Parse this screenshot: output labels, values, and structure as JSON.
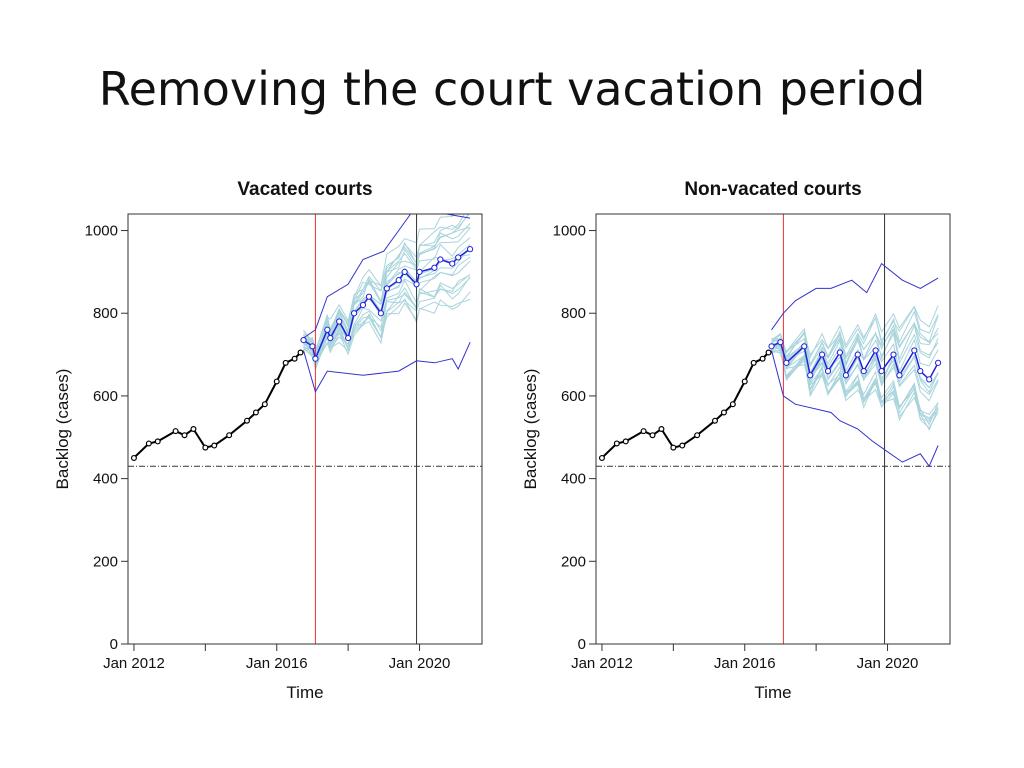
{
  "slide": {
    "title": "Removing the court vacation period"
  },
  "colors": {
    "observed": "#000000",
    "mean_forecast": "#2222dd",
    "bounds": "#3333cc",
    "simulations": "#a9d4dc",
    "intervention_line": "#ee3333",
    "reference_line": "#333333"
  },
  "chart_data": [
    {
      "type": "line",
      "title": "Vacated courts",
      "xlabel": "Time",
      "ylabel": "Backlog (cases)",
      "x_ticks": [
        "Jan 2012",
        "Jan 2016",
        "Jan 2020"
      ],
      "y_ticks": [
        0,
        200,
        400,
        600,
        800,
        1000
      ],
      "ylim": [
        0,
        1040
      ],
      "xlim": [
        "2011-11",
        "2021-10"
      ],
      "grid": false,
      "hline": 430,
      "vlines": [
        {
          "x": "2017-02",
          "color": "red"
        },
        {
          "x": "2019-12",
          "color": "black"
        }
      ],
      "observed": {
        "x": [
          "2012-01",
          "2012-06",
          "2012-09",
          "2013-03",
          "2013-06",
          "2013-09",
          "2014-01",
          "2014-04",
          "2014-09",
          "2015-03",
          "2015-06",
          "2015-09",
          "2016-01",
          "2016-04",
          "2016-07",
          "2016-09"
        ],
        "y": [
          450,
          485,
          490,
          515,
          505,
          520,
          475,
          480,
          505,
          540,
          560,
          580,
          635,
          680,
          690,
          705
        ]
      },
      "mean_forecast": {
        "x": [
          "2016-10",
          "2017-01",
          "2017-02",
          "2017-06",
          "2017-07",
          "2017-10",
          "2018-01",
          "2018-03",
          "2018-06",
          "2018-08",
          "2018-12",
          "2019-02",
          "2019-06",
          "2019-08",
          "2019-12",
          "2020-01",
          "2020-06",
          "2020-08",
          "2020-12",
          "2021-02",
          "2021-06"
        ],
        "y": [
          735,
          720,
          690,
          760,
          740,
          780,
          740,
          800,
          820,
          840,
          800,
          860,
          880,
          900,
          870,
          900,
          910,
          930,
          920,
          935,
          955
        ]
      },
      "upper_bound": {
        "x": [
          "2016-10",
          "2017-02",
          "2017-06",
          "2018-01",
          "2018-06",
          "2019-01",
          "2019-06",
          "2019-10",
          "2020-06",
          "2020-10",
          "2021-06"
        ],
        "y": [
          740,
          760,
          840,
          870,
          930,
          950,
          1000,
          1040,
          1040,
          1040,
          1030
        ]
      },
      "lower_bound": {
        "x": [
          "2016-10",
          "2017-02",
          "2017-06",
          "2018-06",
          "2019-06",
          "2019-12",
          "2020-06",
          "2020-12",
          "2021-02",
          "2021-06"
        ],
        "y": [
          710,
          610,
          660,
          650,
          660,
          685,
          680,
          690,
          665,
          730
        ]
      }
    },
    {
      "type": "line",
      "title": "Non-vacated courts",
      "xlabel": "Time",
      "ylabel": "Backlog (cases)",
      "x_ticks": [
        "Jan 2012",
        "Jan 2016",
        "Jan 2020"
      ],
      "y_ticks": [
        0,
        200,
        400,
        600,
        800,
        1000
      ],
      "ylim": [
        0,
        1040
      ],
      "xlim": [
        "2011-11",
        "2021-10"
      ],
      "grid": false,
      "hline": 430,
      "vlines": [
        {
          "x": "2017-02",
          "color": "red"
        },
        {
          "x": "2019-12",
          "color": "black"
        }
      ],
      "observed": {
        "x": [
          "2012-01",
          "2012-06",
          "2012-09",
          "2013-03",
          "2013-06",
          "2013-09",
          "2014-01",
          "2014-04",
          "2014-09",
          "2015-03",
          "2015-06",
          "2015-09",
          "2016-01",
          "2016-04",
          "2016-07",
          "2016-09"
        ],
        "y": [
          450,
          485,
          490,
          515,
          505,
          520,
          475,
          480,
          505,
          540,
          560,
          580,
          635,
          680,
          690,
          705
        ]
      },
      "mean_forecast": {
        "x": [
          "2016-10",
          "2017-01",
          "2017-03",
          "2017-09",
          "2017-11",
          "2018-03",
          "2018-05",
          "2018-09",
          "2018-11",
          "2019-03",
          "2019-05",
          "2019-09",
          "2019-11",
          "2020-03",
          "2020-05",
          "2020-10",
          "2020-12",
          "2021-03",
          "2021-06"
        ],
        "y": [
          720,
          730,
          680,
          720,
          650,
          700,
          660,
          705,
          650,
          700,
          660,
          710,
          660,
          700,
          650,
          710,
          660,
          640,
          680
        ]
      },
      "upper_bound": {
        "x": [
          "2016-10",
          "2017-02",
          "2017-06",
          "2018-01",
          "2018-06",
          "2019-01",
          "2019-06",
          "2019-11",
          "2020-06",
          "2020-12",
          "2021-06"
        ],
        "y": [
          760,
          800,
          830,
          860,
          860,
          880,
          850,
          920,
          880,
          860,
          885
        ]
      },
      "lower_bound": {
        "x": [
          "2016-10",
          "2017-02",
          "2017-06",
          "2018-06",
          "2018-09",
          "2019-03",
          "2019-08",
          "2019-12",
          "2020-06",
          "2020-12",
          "2021-03",
          "2021-06"
        ],
        "y": [
          710,
          600,
          580,
          560,
          540,
          520,
          490,
          470,
          440,
          460,
          430,
          480
        ]
      }
    }
  ]
}
